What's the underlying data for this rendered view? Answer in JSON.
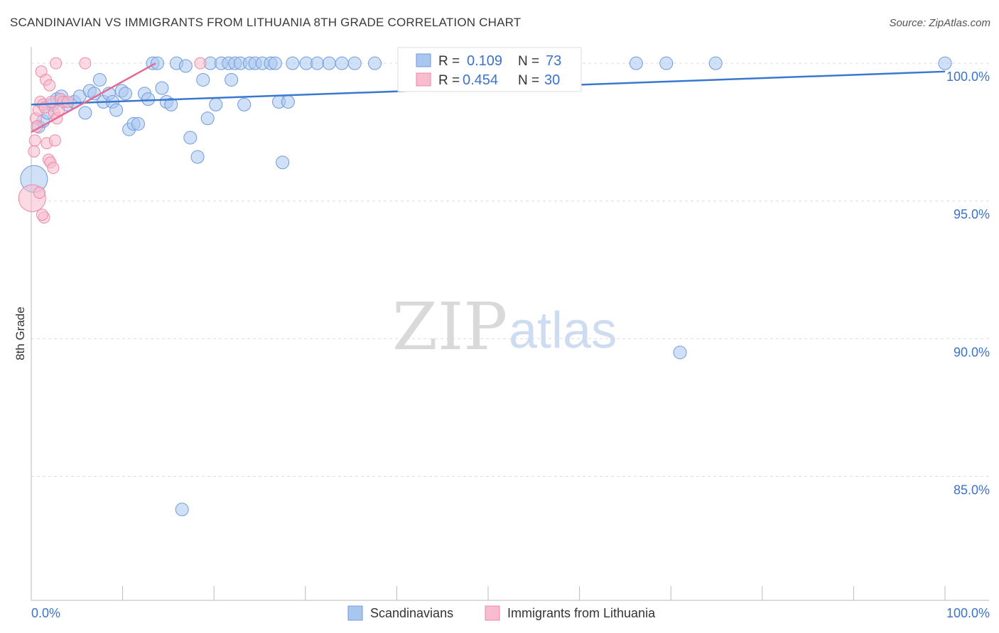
{
  "title": "SCANDINAVIAN VS IMMIGRANTS FROM LITHUANIA 8TH GRADE CORRELATION CHART",
  "source": "Source: ZipAtlas.com",
  "watermark": {
    "zip": "ZIP",
    "atlas": "atlas"
  },
  "colors": {
    "blue_fill": "#a9c6ee",
    "blue_stroke": "#6e9be0",
    "blue_line": "#3a78d0",
    "pink_fill": "#f7bccd",
    "pink_stroke": "#ee89a6",
    "pink_line": "#e36a93",
    "accent_text": "#3b73c9",
    "grid": "#dcdcdc"
  },
  "legend": {
    "rows": [
      {
        "r_label": "R = ",
        "r_value": "0.109",
        "n_label": "N = ",
        "n_value": "73"
      },
      {
        "r_label": "R = ",
        "r_value": "0.454",
        "n_label": "N = ",
        "n_value": "30"
      }
    ]
  },
  "chart_data": {
    "type": "scatter",
    "title": "SCANDINAVIAN VS IMMIGRANTS FROM LITHUANIA 8TH GRADE CORRELATION CHART",
    "xlabel": "",
    "ylabel": "8th Grade",
    "xlim": [
      0,
      100
    ],
    "ylim": [
      80.5,
      100.7
    ],
    "x_tick_labels": [
      "0.0%",
      "100.0%"
    ],
    "y_ticks": [
      85,
      90,
      95,
      100
    ],
    "y_tick_labels": [
      "85.0%",
      "90.0%",
      "95.0%",
      "100.0%"
    ],
    "grid": true,
    "legend_position": "top-center",
    "series": [
      {
        "name": "Scandinavians",
        "color": "#a9c6ee",
        "r": 0.109,
        "n": 73,
        "trend": {
          "x": [
            0,
            100
          ],
          "y": [
            98.5,
            99.7
          ]
        },
        "points": [
          {
            "x": 0.3,
            "y": 95.8,
            "big": true
          },
          {
            "x": 0.8,
            "y": 97.7
          },
          {
            "x": 1.3,
            "y": 97.9
          },
          {
            "x": 1.8,
            "y": 98.2
          },
          {
            "x": 2.3,
            "y": 98.5
          },
          {
            "x": 2.8,
            "y": 98.7
          },
          {
            "x": 3.3,
            "y": 98.8
          },
          {
            "x": 3.9,
            "y": 98.5
          },
          {
            "x": 4.7,
            "y": 98.6
          },
          {
            "x": 5.3,
            "y": 98.8
          },
          {
            "x": 5.9,
            "y": 98.2
          },
          {
            "x": 6.4,
            "y": 99.0
          },
          {
            "x": 6.9,
            "y": 98.9
          },
          {
            "x": 7.5,
            "y": 99.4
          },
          {
            "x": 7.9,
            "y": 98.6
          },
          {
            "x": 8.5,
            "y": 98.9
          },
          {
            "x": 8.9,
            "y": 98.6
          },
          {
            "x": 9.3,
            "y": 98.3
          },
          {
            "x": 9.9,
            "y": 99.0
          },
          {
            "x": 10.3,
            "y": 98.9
          },
          {
            "x": 10.7,
            "y": 97.6
          },
          {
            "x": 11.2,
            "y": 97.8
          },
          {
            "x": 11.7,
            "y": 97.8
          },
          {
            "x": 12.4,
            "y": 98.9
          },
          {
            "x": 12.8,
            "y": 98.7
          },
          {
            "x": 13.3,
            "y": 100.0
          },
          {
            "x": 13.8,
            "y": 100.0
          },
          {
            "x": 14.3,
            "y": 99.1
          },
          {
            "x": 14.8,
            "y": 98.6
          },
          {
            "x": 15.3,
            "y": 98.5
          },
          {
            "x": 15.9,
            "y": 100.0
          },
          {
            "x": 16.5,
            "y": 83.8
          },
          {
            "x": 16.9,
            "y": 99.9
          },
          {
            "x": 17.4,
            "y": 97.3
          },
          {
            "x": 18.2,
            "y": 96.6
          },
          {
            "x": 18.8,
            "y": 99.4
          },
          {
            "x": 19.3,
            "y": 98.0
          },
          {
            "x": 19.6,
            "y": 100.0
          },
          {
            "x": 20.2,
            "y": 98.5
          },
          {
            "x": 20.8,
            "y": 100.0
          },
          {
            "x": 21.6,
            "y": 100.0
          },
          {
            "x": 21.9,
            "y": 99.4
          },
          {
            "x": 22.3,
            "y": 100.0
          },
          {
            "x": 22.9,
            "y": 100.0
          },
          {
            "x": 23.3,
            "y": 98.5
          },
          {
            "x": 23.9,
            "y": 100.0
          },
          {
            "x": 24.5,
            "y": 100.0
          },
          {
            "x": 25.3,
            "y": 100.0
          },
          {
            "x": 26.2,
            "y": 100.0
          },
          {
            "x": 26.7,
            "y": 100.0
          },
          {
            "x": 27.1,
            "y": 98.6
          },
          {
            "x": 27.5,
            "y": 96.4
          },
          {
            "x": 28.1,
            "y": 98.6
          },
          {
            "x": 28.6,
            "y": 100.0
          },
          {
            "x": 30.1,
            "y": 100.0
          },
          {
            "x": 31.3,
            "y": 100.0
          },
          {
            "x": 32.6,
            "y": 100.0
          },
          {
            "x": 34.0,
            "y": 100.0
          },
          {
            "x": 35.4,
            "y": 100.0
          },
          {
            "x": 37.6,
            "y": 100.0
          },
          {
            "x": 41.2,
            "y": 100.0
          },
          {
            "x": 44.1,
            "y": 100.0
          },
          {
            "x": 47.0,
            "y": 100.0
          },
          {
            "x": 49.5,
            "y": 100.0
          },
          {
            "x": 52.3,
            "y": 100.0
          },
          {
            "x": 53.0,
            "y": 100.0
          },
          {
            "x": 54.6,
            "y": 100.0
          },
          {
            "x": 56.4,
            "y": 100.0
          },
          {
            "x": 66.2,
            "y": 100.0
          },
          {
            "x": 69.5,
            "y": 100.0
          },
          {
            "x": 71.0,
            "y": 89.5
          },
          {
            "x": 74.9,
            "y": 100.0
          },
          {
            "x": 100.0,
            "y": 100.0
          }
        ]
      },
      {
        "name": "Immigrants from Lithuania",
        "color": "#f7bccd",
        "r": 0.454,
        "n": 30,
        "trend": {
          "x": [
            0,
            13.6
          ],
          "y": [
            97.5,
            100.0
          ]
        },
        "points": [
          {
            "x": 0.1,
            "y": 95.1,
            "big": true
          },
          {
            "x": 0.3,
            "y": 96.8
          },
          {
            "x": 0.4,
            "y": 97.2
          },
          {
            "x": 0.5,
            "y": 98.0
          },
          {
            "x": 0.6,
            "y": 97.7
          },
          {
            "x": 0.8,
            "y": 98.3
          },
          {
            "x": 1.0,
            "y": 98.6
          },
          {
            "x": 1.1,
            "y": 99.7
          },
          {
            "x": 1.3,
            "y": 98.5
          },
          {
            "x": 1.4,
            "y": 94.4
          },
          {
            "x": 1.5,
            "y": 98.4
          },
          {
            "x": 1.6,
            "y": 99.4
          },
          {
            "x": 1.7,
            "y": 97.1
          },
          {
            "x": 1.9,
            "y": 96.5
          },
          {
            "x": 2.0,
            "y": 99.2
          },
          {
            "x": 2.1,
            "y": 96.4
          },
          {
            "x": 2.2,
            "y": 98.6
          },
          {
            "x": 2.4,
            "y": 96.2
          },
          {
            "x": 2.5,
            "y": 98.2
          },
          {
            "x": 2.6,
            "y": 97.2
          },
          {
            "x": 2.8,
            "y": 98.0
          },
          {
            "x": 3.0,
            "y": 98.3
          },
          {
            "x": 3.2,
            "y": 98.7
          },
          {
            "x": 3.5,
            "y": 98.6
          },
          {
            "x": 4.0,
            "y": 98.6
          },
          {
            "x": 0.9,
            "y": 95.3
          },
          {
            "x": 1.2,
            "y": 94.5
          },
          {
            "x": 2.7,
            "y": 100.0
          },
          {
            "x": 5.9,
            "y": 100.0
          },
          {
            "x": 18.5,
            "y": 100.0
          }
        ]
      }
    ]
  },
  "bottom_legend": [
    {
      "label": "Scandinavians",
      "color": "#a9c6ee",
      "stroke": "#6e9be0"
    },
    {
      "label": "Immigrants from Lithuania",
      "color": "#f7bccd",
      "stroke": "#ee89a6"
    }
  ]
}
